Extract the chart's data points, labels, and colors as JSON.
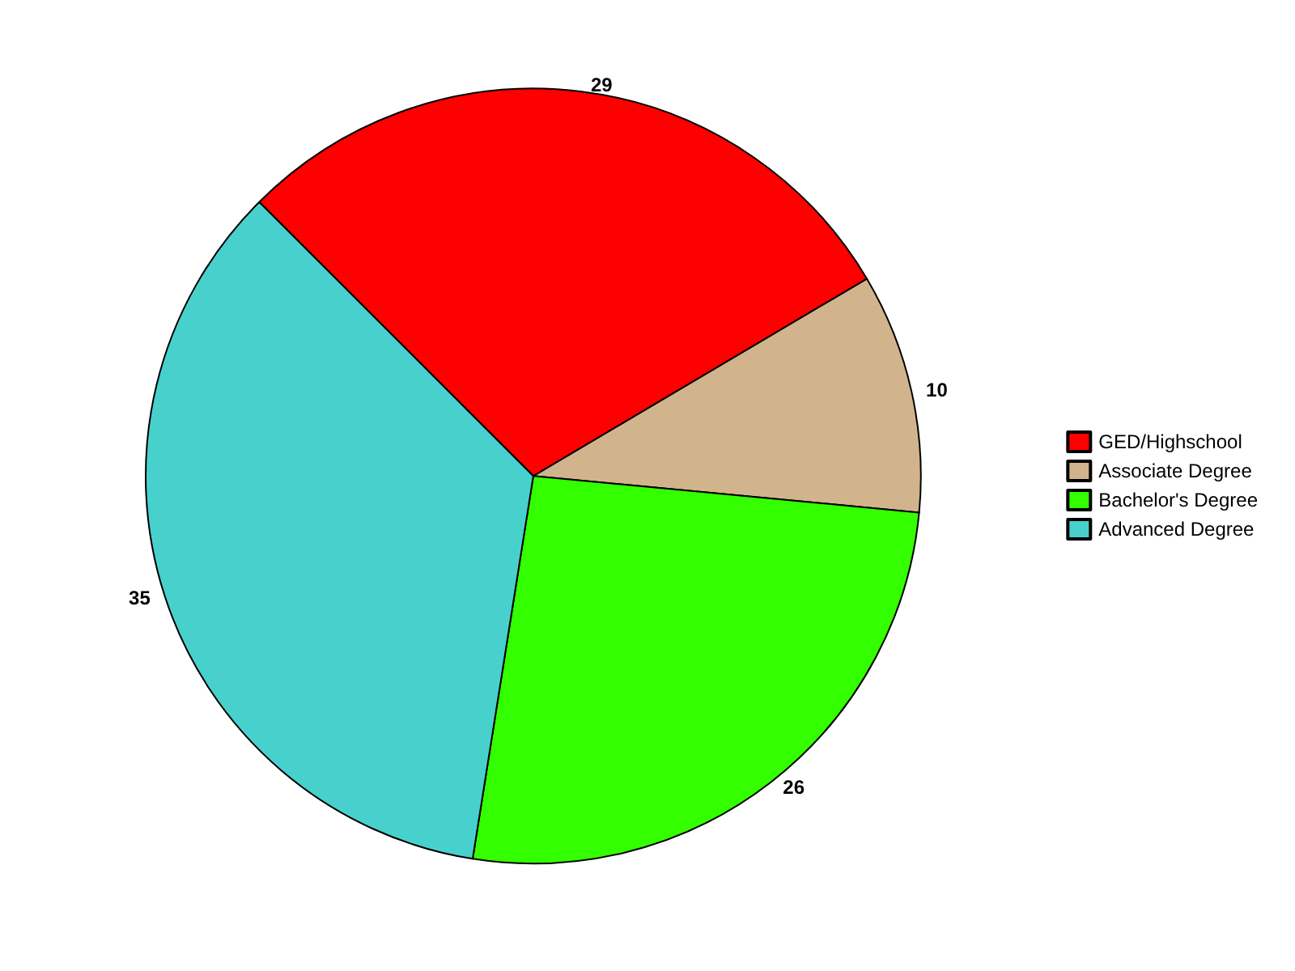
{
  "chart_data": {
    "type": "pie",
    "categories": [
      "GED/Highschool",
      "Associate Degree",
      "Bachelor's Degree",
      "Advanced Degree"
    ],
    "values": [
      29,
      10,
      26,
      35
    ],
    "colors": [
      "#ff0000",
      "#d2b48c",
      "#33ff00",
      "#48d1cc"
    ],
    "data_labels": true,
    "legend": "right"
  }
}
